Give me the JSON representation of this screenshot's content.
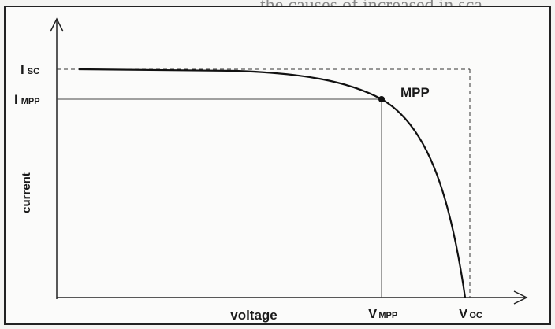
{
  "header_fragment": "the causes of increased in sca",
  "labels": {
    "isc": {
      "main": "I",
      "sub": "SC"
    },
    "impp": {
      "main": "I",
      "sub": "MPP"
    },
    "mpp": "MPP",
    "y_axis": "current",
    "x_axis": "voltage",
    "vmpp": {
      "main": "V",
      "sub": "MPP"
    },
    "voc": {
      "main": "V",
      "sub": "OC"
    }
  }
}
